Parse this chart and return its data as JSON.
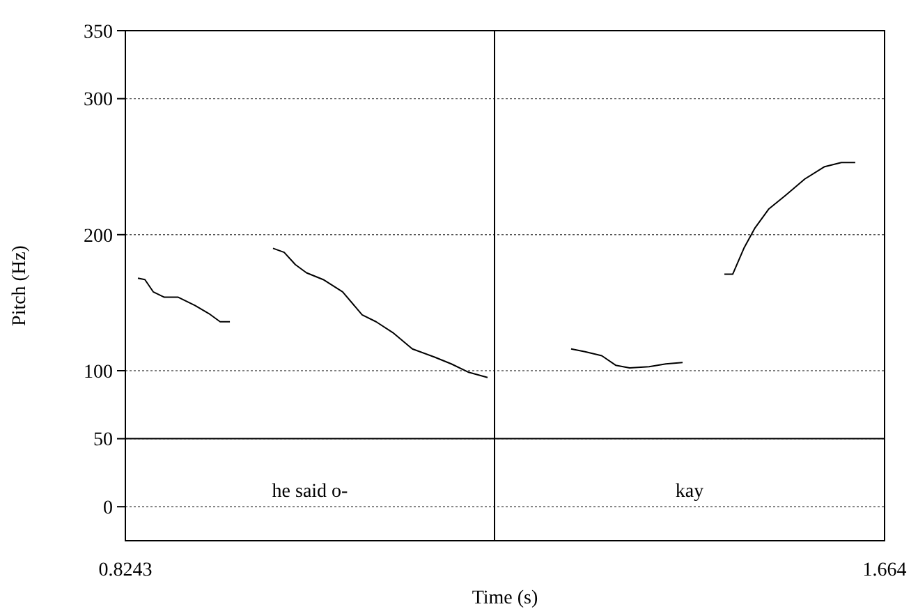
{
  "chart_data": {
    "type": "line",
    "xlabel": "Time (s)",
    "ylabel": "Pitch (Hz)",
    "xlim": [
      0.8243,
      1.664
    ],
    "xticks": [
      0.8243,
      1.664
    ],
    "ylim": [
      -25,
      350
    ],
    "yticks": [
      0,
      50,
      100,
      200,
      300,
      350
    ],
    "grid": "y",
    "line_style": "solid",
    "marker": "none",
    "series": [
      {
        "color": "#000000",
        "x": [
          0.8382,
          0.8459,
          0.8551,
          0.8674,
          0.8828,
          0.9013,
          0.9167,
          0.9291,
          0.9399
        ],
        "values": [
          168,
          167,
          158,
          154,
          154,
          148,
          142,
          136,
          136
        ]
      },
      {
        "color": "#000000",
        "x": [
          0.9876,
          0.9999,
          1.0123,
          1.0246,
          1.0431,
          1.0646,
          1.0862,
          1.1016,
          1.1201,
          1.1417,
          1.1663,
          1.1848,
          1.2033,
          1.2249
        ],
        "values": [
          190,
          187,
          178,
          172,
          167,
          158,
          141,
          136,
          128,
          116,
          110,
          105,
          99,
          95
        ]
      },
      {
        "color": "#000000",
        "x": [
          1.3173,
          1.3327,
          1.3512,
          1.3666,
          1.382,
          1.4036,
          1.4221,
          1.4406
        ],
        "values": [
          116,
          114,
          111,
          104,
          102,
          103,
          105,
          106
        ]
      },
      {
        "color": "#000000",
        "x": [
          1.4868,
          1.4961,
          1.5084,
          1.5207,
          1.5361,
          1.5546,
          1.5759,
          1.5977,
          1.6162,
          1.6316
        ],
        "values": [
          171,
          171,
          190,
          205,
          219,
          229,
          241,
          250,
          253,
          253
        ]
      }
    ],
    "ref_lines": [
      {
        "axis": "y",
        "value": 50,
        "color": "#000000",
        "line_style": "solid"
      },
      {
        "axis": "x",
        "value": 1.2326,
        "color": "#000000",
        "line_style": "solid"
      }
    ],
    "annotations": [
      "he said o-",
      "kay"
    ]
  }
}
